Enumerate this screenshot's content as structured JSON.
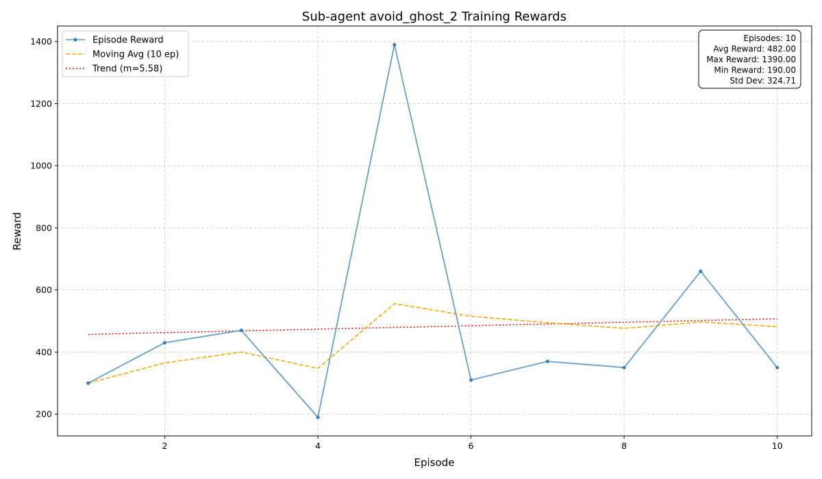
{
  "chart_data": {
    "type": "line",
    "title": "Sub-agent avoid_ghost_2 Training Rewards",
    "xlabel": "Episode",
    "ylabel": "Reward",
    "xlim": [
      0.6,
      10.45
    ],
    "ylim": [
      130,
      1450
    ],
    "xticks": [
      2,
      4,
      6,
      8,
      10
    ],
    "yticks": [
      200,
      400,
      600,
      800,
      1000,
      1200,
      1400
    ],
    "grid": true,
    "legend_position": "top-left",
    "x": [
      1,
      2,
      3,
      4,
      5,
      6,
      7,
      8,
      9,
      10
    ],
    "series": [
      {
        "name": "Episode Reward",
        "values": [
          300,
          430,
          470,
          190,
          1390,
          310,
          370,
          350,
          660,
          350
        ],
        "color": "#5b9bc8",
        "style": "solid",
        "markers": true
      },
      {
        "name": "Moving Avg (10 ep)",
        "values": [
          300,
          365,
          400,
          347.5,
          556,
          515,
          494.3,
          476.3,
          496.7,
          482
        ],
        "color": "#ffa500",
        "style": "dashed",
        "markers": false
      },
      {
        "name": "Trend (m=5.58)",
        "values": [
          456.9,
          462.5,
          468.1,
          473.7,
          479.2,
          484.8,
          490.4,
          496.0,
          501.5,
          507.1
        ],
        "color": "#ff0000",
        "style": "dotted",
        "markers": false
      }
    ],
    "stats_box": {
      "position": "top-right",
      "lines": [
        "Episodes: 10",
        "Avg Reward: 482.00",
        "Max Reward: 1390.00",
        "Min Reward: 190.00",
        "Std Dev: 324.71"
      ]
    }
  }
}
